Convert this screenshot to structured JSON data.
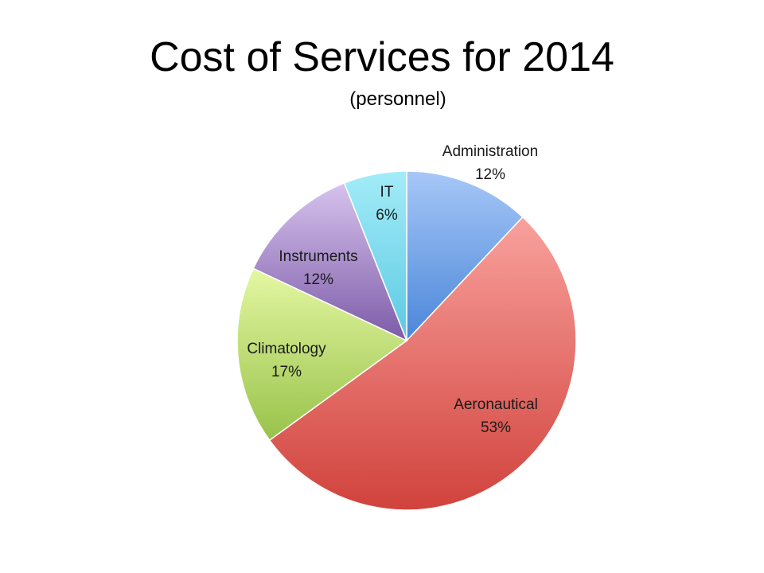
{
  "chart_data": {
    "type": "pie",
    "title": "Cost of Services for 2014",
    "subtitle": "(personnel)",
    "slices": [
      {
        "name": "Administration",
        "value": 12,
        "label": "12%",
        "color_top": "#a7c7f7",
        "color_bottom": "#4a86d9"
      },
      {
        "name": "Aeronautical",
        "value": 53,
        "label": "53%",
        "color_top": "#f9a19d",
        "color_bottom": "#d1423c"
      },
      {
        "name": "Climatology",
        "value": 17,
        "label": "17%",
        "color_top": "#e4f7a2",
        "color_bottom": "#98c24a"
      },
      {
        "name": "Instruments",
        "value": 12,
        "label": "12%",
        "color_top": "#d6c3ee",
        "color_bottom": "#7d5ba8"
      },
      {
        "name": "IT",
        "value": 6,
        "label": "6%",
        "color_top": "#a3ecf8",
        "color_bottom": "#5cc9e2"
      }
    ]
  }
}
